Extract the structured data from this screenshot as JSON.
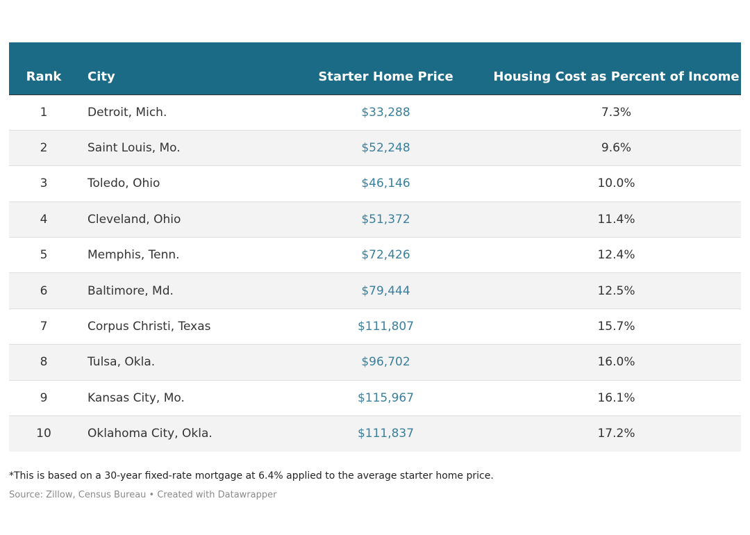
{
  "chart_data": {
    "type": "table",
    "columns": [
      "Rank",
      "City",
      "Starter Home Price",
      "Housing Cost as Percent of Income"
    ],
    "rows": [
      [
        "1",
        "Detroit, Mich.",
        "$33,288",
        "7.3%"
      ],
      [
        "2",
        "Saint Louis, Mo.",
        "$52,248",
        "9.6%"
      ],
      [
        "3",
        "Toledo, Ohio",
        "$46,146",
        "10.0%"
      ],
      [
        "4",
        "Cleveland, Ohio",
        "$51,372",
        "11.4%"
      ],
      [
        "5",
        "Memphis, Tenn.",
        "$72,426",
        "12.4%"
      ],
      [
        "6",
        "Baltimore, Md.",
        "$79,444",
        "12.5%"
      ],
      [
        "7",
        "Corpus Christi, Texas",
        "$111,807",
        "15.7%"
      ],
      [
        "8",
        "Tulsa, Okla.",
        "$96,702",
        "16.0%"
      ],
      [
        "9",
        "Kansas City, Mo.",
        "$115,967",
        "16.1%"
      ],
      [
        "10",
        "Oklahoma City, Okla.",
        "$111,837",
        "17.2%"
      ]
    ],
    "footnote": "*This is based on a 30-year fixed-rate mortgage at 6.4% applied to the average starter home price.",
    "source": "Source: Zillow, Census Bureau • Created with Datawrapper"
  },
  "colors": {
    "header_bg": "#1b6a86",
    "price_text": "#3a7f9c",
    "stripe": "#f3f3f3"
  }
}
